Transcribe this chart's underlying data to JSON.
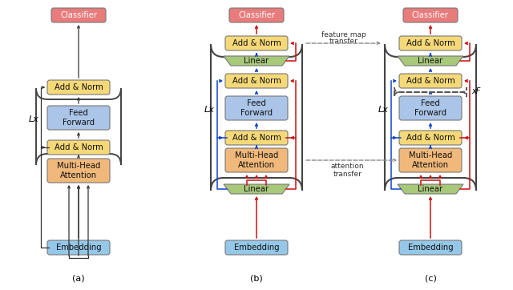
{
  "background": "#ffffff",
  "colors": {
    "classifier": "#e87b7b",
    "embedding": "#95c8e8",
    "add_norm": "#f5d878",
    "feed_forward": "#aac5e8",
    "multi_head": "#f0b87a",
    "linear": "#a8c87a"
  },
  "arrow_colors": {
    "black": "#333333",
    "red": "#cc1111",
    "blue": "#1144cc",
    "gray": "#888888"
  },
  "diagrams": [
    "(a)",
    "(b)",
    "(c)"
  ]
}
